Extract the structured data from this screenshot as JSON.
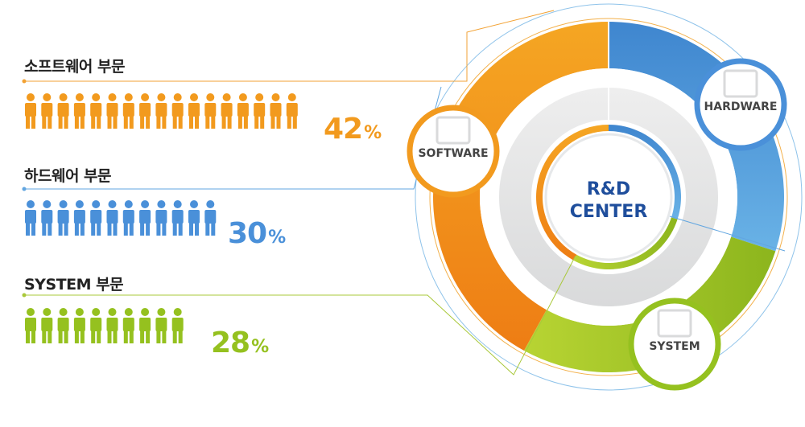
{
  "chart_data": {
    "type": "pie",
    "title": "",
    "center_label": [
      "R&D",
      "CENTER"
    ],
    "categories": [
      "소프트웨어 부문",
      "하드웨어 부문",
      "SYSTEM 부문"
    ],
    "segment_labels": [
      "SOFTWARE",
      "HARDWARE",
      "SYSTEM"
    ],
    "values": [
      42,
      30,
      28
    ],
    "value_labels": [
      "42",
      "30",
      "28"
    ],
    "unit": "%",
    "people_counts": [
      17,
      12,
      10
    ],
    "colors": [
      "#f29a1e",
      "#4a90d9",
      "#95c11f"
    ]
  }
}
